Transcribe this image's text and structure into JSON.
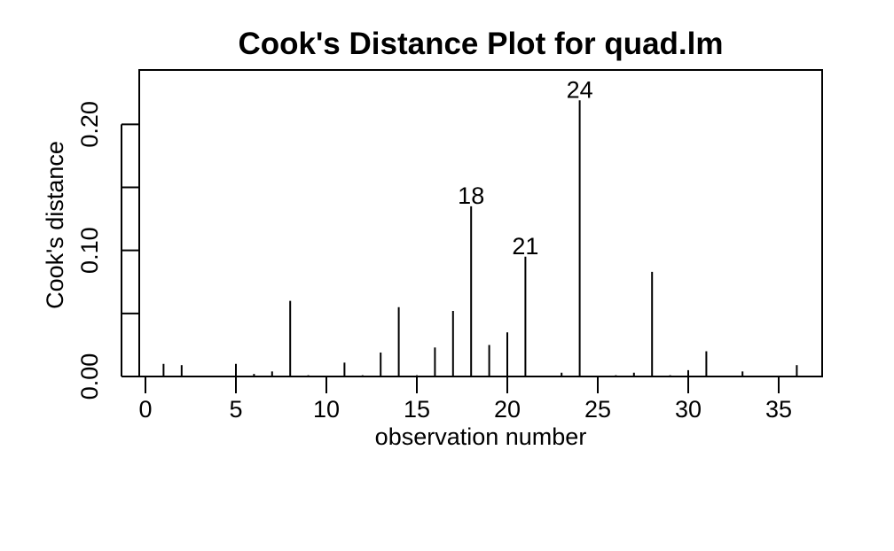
{
  "chart_data": {
    "type": "bar",
    "subtype": "spike",
    "title": "Cook's Distance Plot for quad.lm",
    "xlabel": "observation number",
    "ylabel": "Cook's distance",
    "xlim": [
      0,
      36
    ],
    "ylim": [
      0,
      0.22
    ],
    "x_ticks": [
      0,
      5,
      10,
      15,
      20,
      25,
      30,
      35
    ],
    "x_tick_labels": [
      "0",
      "5",
      "10",
      "15",
      "20",
      "25",
      "30",
      "35"
    ],
    "y_ticks": [
      0,
      0.05,
      0.1,
      0.15,
      0.2
    ],
    "y_tick_labels": [
      "0.00",
      "",
      "0.10",
      "",
      "0.20"
    ],
    "grid": false,
    "legend": "none",
    "x": [
      1,
      2,
      3,
      4,
      5,
      6,
      7,
      8,
      9,
      10,
      11,
      12,
      13,
      14,
      15,
      16,
      17,
      18,
      19,
      20,
      21,
      22,
      23,
      24,
      25,
      26,
      27,
      28,
      29,
      30,
      31,
      32,
      33,
      34,
      35,
      36
    ],
    "values": [
      0.01,
      0.009,
      0.0,
      0.0,
      0.01,
      0.002,
      0.004,
      0.06,
      0.001,
      0.0,
      0.011,
      0.001,
      0.019,
      0.055,
      0.001,
      0.023,
      0.052,
      0.135,
      0.025,
      0.035,
      0.095,
      0.0,
      0.003,
      0.219,
      0.0,
      0.001,
      0.003,
      0.083,
      0.001,
      0.005,
      0.02,
      0.0,
      0.004,
      0.0,
      0.0,
      0.009
    ],
    "labeled_points": [
      {
        "x": 18,
        "label": "18"
      },
      {
        "x": 21,
        "label": "21"
      },
      {
        "x": 24,
        "label": "24"
      }
    ]
  }
}
